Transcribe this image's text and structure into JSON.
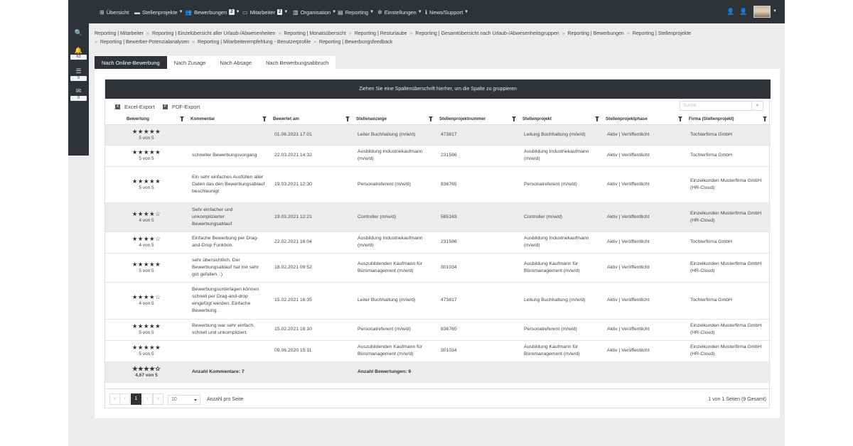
{
  "nav": {
    "items": [
      {
        "label": "Übersicht",
        "icon": "grid-icon"
      },
      {
        "label": "Stellenprojekte",
        "icon": "briefcase-icon"
      },
      {
        "label": "Bewerbungen",
        "icon": "users-icon",
        "badge": "2"
      },
      {
        "label": "Mitarbeiter",
        "icon": "monitor-icon",
        "badge": "2"
      },
      {
        "label": "Organisation",
        "icon": "building-icon"
      },
      {
        "label": "Reporting",
        "icon": "report-icon"
      },
      {
        "label": "Einstellungen",
        "icon": "gears-icon"
      },
      {
        "label": "News/Support",
        "icon": "info-icon"
      }
    ]
  },
  "sidebar": {
    "notifications_count": "63",
    "tasks_count": "0",
    "messages_count": "0"
  },
  "breadcrumbs": [
    "Reporting | Mitarbeiter",
    "Reporting | Einzelübersicht aller Urlaub-/Abwesenheiten",
    "Reporting | Monatsübersicht",
    "Reporting | Resturlaube",
    "Reporting | Gesamtübersicht nach Urlaub-/Abwesenheitsgruppen",
    "Reporting | Bewerbungen",
    "Reporting | Stellenprojekte",
    "Reporting | Bewerber-Potenzialanalysen",
    "Reporting | Mitarbeiterempfehlung - Benutzerprofile",
    "Reporting | Bewerbungsfeedback"
  ],
  "tabs": [
    "Nach Online-Bewerbung",
    "Nach Zusage",
    "Nach Absage",
    "Nach Bewerbungsabbruch"
  ],
  "grid": {
    "group_hint": "Ziehen Sie eine Spaltenüberschrift hierher, um die Spalte zu gruppieren",
    "excel_export": "Excel-Export",
    "pdf_export": "PDF-Export",
    "search_placeholder": "Suche",
    "columns": [
      "Bewertung",
      "Kommentar",
      "Bewertet am",
      "Stellenanzeige",
      "Stellenprojektnummer",
      "Stellenprojekt",
      "Stellenprojektphase",
      "Firma (Stellenprojekt)"
    ],
    "rows": [
      {
        "stars": "★★★★★",
        "rating": "5 von 5",
        "comment": "",
        "date": "01.06.2021 17:01",
        "ad": "Leiter Buchhaltung (m/w/d)",
        "number": "473817",
        "project": "Leitung Buchhaltung (m/w/d)",
        "phase": "Aktiv | Veröffentlicht",
        "company": "Tochterfirma GmbH"
      },
      {
        "stars": "★★★★★",
        "rating": "5 von 5",
        "comment": "schneller Bewerbungsvorgang",
        "date": "22.03.2021 14:32",
        "ad": "Ausbildung Industriekaufmann (m/w/d)",
        "number": "231586",
        "project": "Ausbildung Industriekaufmann (m/w/d)",
        "phase": "Aktiv | Veröffentlicht",
        "company": "Tochterfirma GmbH"
      },
      {
        "stars": "★★★★★",
        "rating": "5 von 5",
        "comment": "Ein sehr einfaches Ausfüllen aller Daten das den Bewerbungsablauf beschleunigt",
        "date": "19.03.2021 12:30",
        "ad": "Personalreferent (m/w/d)",
        "number": "836765",
        "project": "Personalreferent (m/w/d)",
        "phase": "Aktiv | Veröffentlicht",
        "company": "Einzelkunden Musterfirma GmbH (HR-Cloud)"
      },
      {
        "stars": "★★★★☆",
        "rating": "4 von 5",
        "comment": "Sehr einfacher und unkomplizierter Bewerbungsablauf",
        "date": "19.03.2021 12:21",
        "ad": "Controller (m/w/d)",
        "number": "585163",
        "project": "Controller (m/w/d)",
        "phase": "Aktiv | Veröffentlicht",
        "company": "Einzelkunden Musterfirma GmbH (HR-Cloud)"
      },
      {
        "stars": "★★★★☆",
        "rating": "4 von 5",
        "comment": "Einfache Bewerbung per Drag-and-Drop Funktion.",
        "date": "22.02.2021 16:04",
        "ad": "Ausbildung Industriekaufmann (m/w/d)",
        "number": "231586",
        "project": "Ausbildung Industriekaufmann (m/w/d)",
        "phase": "Aktiv | Veröffentlicht",
        "company": "Tochterfirma GmbH"
      },
      {
        "stars": "★★★★★",
        "rating": "5 von 5",
        "comment": "sehr übersichtlich. Der Bewerbungsablauf hat mir sehr gut gefallen. :)",
        "date": "18.02.2021 09:52",
        "ad": "Auszubildenden Kaufmann für Büromanagement (m/w/d)",
        "number": "301034",
        "project": "Ausbildung Kaufmann für Büromanagement (m/w/d)",
        "phase": "Aktiv | Veröffentlicht",
        "company": "Einzelkunden Musterfirma GmbH (HR-Cloud)"
      },
      {
        "stars": "★★★★☆",
        "rating": "4 von 5",
        "comment": "Bewerbungsunterlagen können schnell per Drag-and-drop eingefügt werden. Einfache Bewerbung.",
        "date": "15.02.2021 16:35",
        "ad": "Leiter Buchhaltung (m/w/d)",
        "number": "473817",
        "project": "Leitung Buchhaltung (m/w/d)",
        "phase": "Aktiv | Veröffentlicht",
        "company": "Tochterfirma GmbH"
      },
      {
        "stars": "★★★★★",
        "rating": "5 von 5",
        "comment": "Bewerbung war sehr einfach, schnell und unkompliziert.",
        "date": "15.02.2021 16:10",
        "ad": "Personalreferent (m/w/d)",
        "number": "836765",
        "project": "Personalreferent (m/w/d)",
        "phase": "Aktiv | Veröffentlicht",
        "company": "Einzelkunden Musterfirma GmbH (HR-Cloud)"
      },
      {
        "stars": "★★★★★",
        "rating": "5 von 5",
        "comment": "",
        "date": "09.06.2020 15:11",
        "ad": "Auszubildenden Kaufmann für Büromanagement (m/w/d)",
        "number": "301034",
        "project": "Ausbildung Kaufmann für Büromanagement (m/w/d)",
        "phase": "Aktiv | Veröffentlicht",
        "company": "Einzelkunden Musterfirma GmbH (HR-Cloud)"
      }
    ],
    "footer": {
      "stars": "★★★★✫",
      "average": "4,67 von 5",
      "comments_total": "Anzahl Kommentare: 7",
      "ratings_total": "Anzahl Bewertungen: 9"
    }
  },
  "pager": {
    "first": "«",
    "prev": "‹",
    "current": "1",
    "next": "›",
    "last": "»",
    "page_size": "10",
    "page_size_label": "Anzahl pro Seite",
    "summary": "1 von 1 Seiten (9 Gesamt)"
  }
}
